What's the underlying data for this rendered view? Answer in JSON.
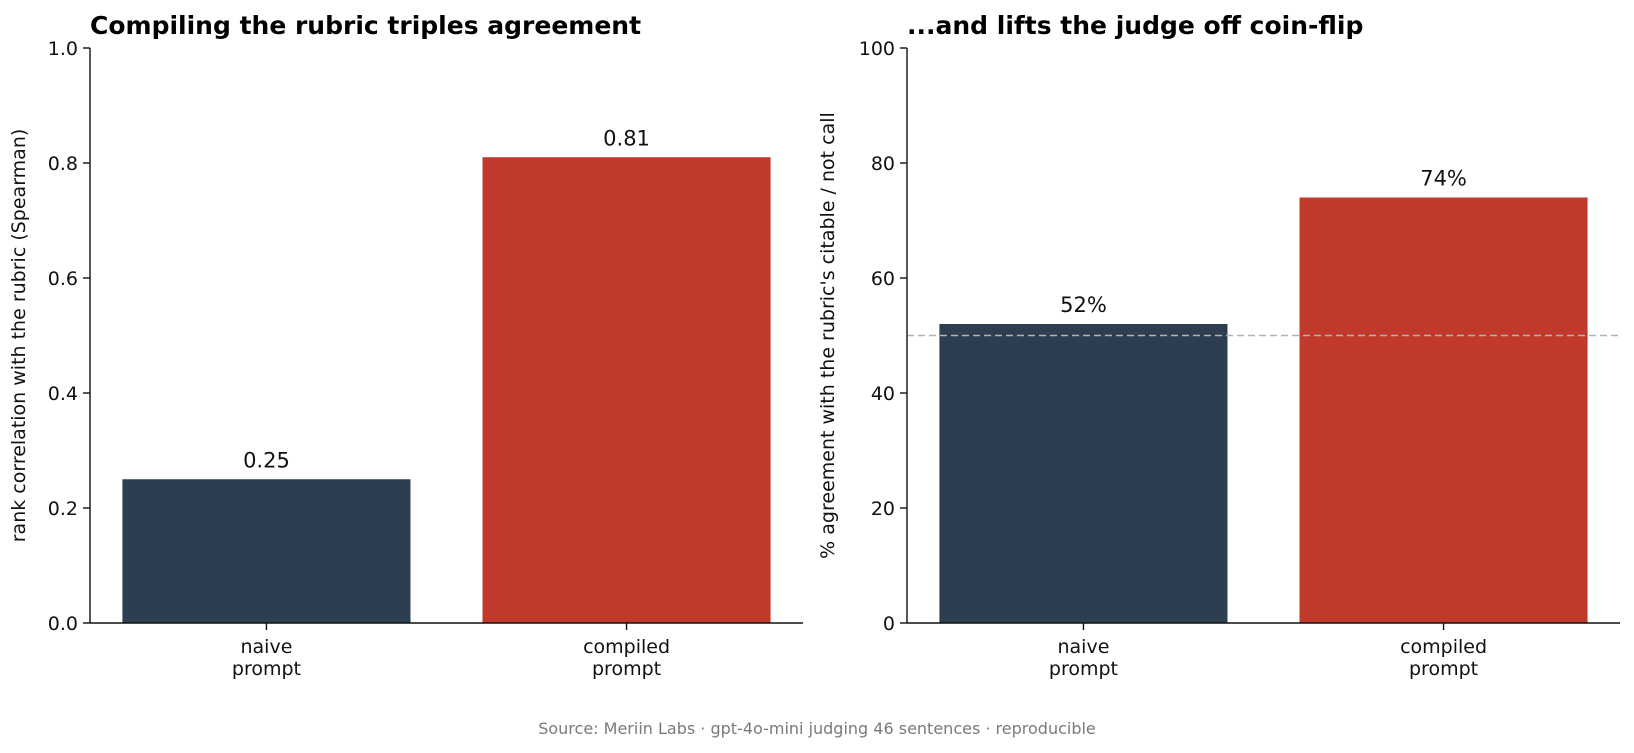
{
  "chart_data": [
    {
      "type": "bar",
      "title": "Compiling the rubric triples agreement",
      "ylabel": "rank correlation with the rubric (Spearman)",
      "categories": [
        "naive\nprompt",
        "compiled\nprompt"
      ],
      "values": [
        0.25,
        0.81
      ],
      "value_labels": [
        "0.25",
        "0.81"
      ],
      "bar_colors": [
        "#2d3e50",
        "#c0392b"
      ],
      "ylim": [
        0,
        1.0
      ],
      "yticks": [
        0.0,
        0.2,
        0.4,
        0.6,
        0.8,
        1.0
      ],
      "ytick_labels": [
        "0.0",
        "0.2",
        "0.4",
        "0.6",
        "0.8",
        "1.0"
      ],
      "grid": false
    },
    {
      "type": "bar",
      "title": "...and lifts the judge off coin-flip",
      "ylabel": "% agreement with the rubric's citable / not call",
      "categories": [
        "naive\nprompt",
        "compiled\nprompt"
      ],
      "values": [
        52,
        74
      ],
      "value_labels": [
        "52%",
        "74%"
      ],
      "bar_colors": [
        "#2d3e50",
        "#c0392b"
      ],
      "ylim": [
        0,
        100
      ],
      "yticks": [
        0,
        20,
        40,
        60,
        80,
        100
      ],
      "ytick_labels": [
        "0",
        "20",
        "40",
        "60",
        "80",
        "100"
      ],
      "reference_line": 50,
      "grid": false
    }
  ],
  "footer": {
    "source": "Source: Meriin Labs · gpt-4o-mini judging 46 sentences · reproducible"
  }
}
